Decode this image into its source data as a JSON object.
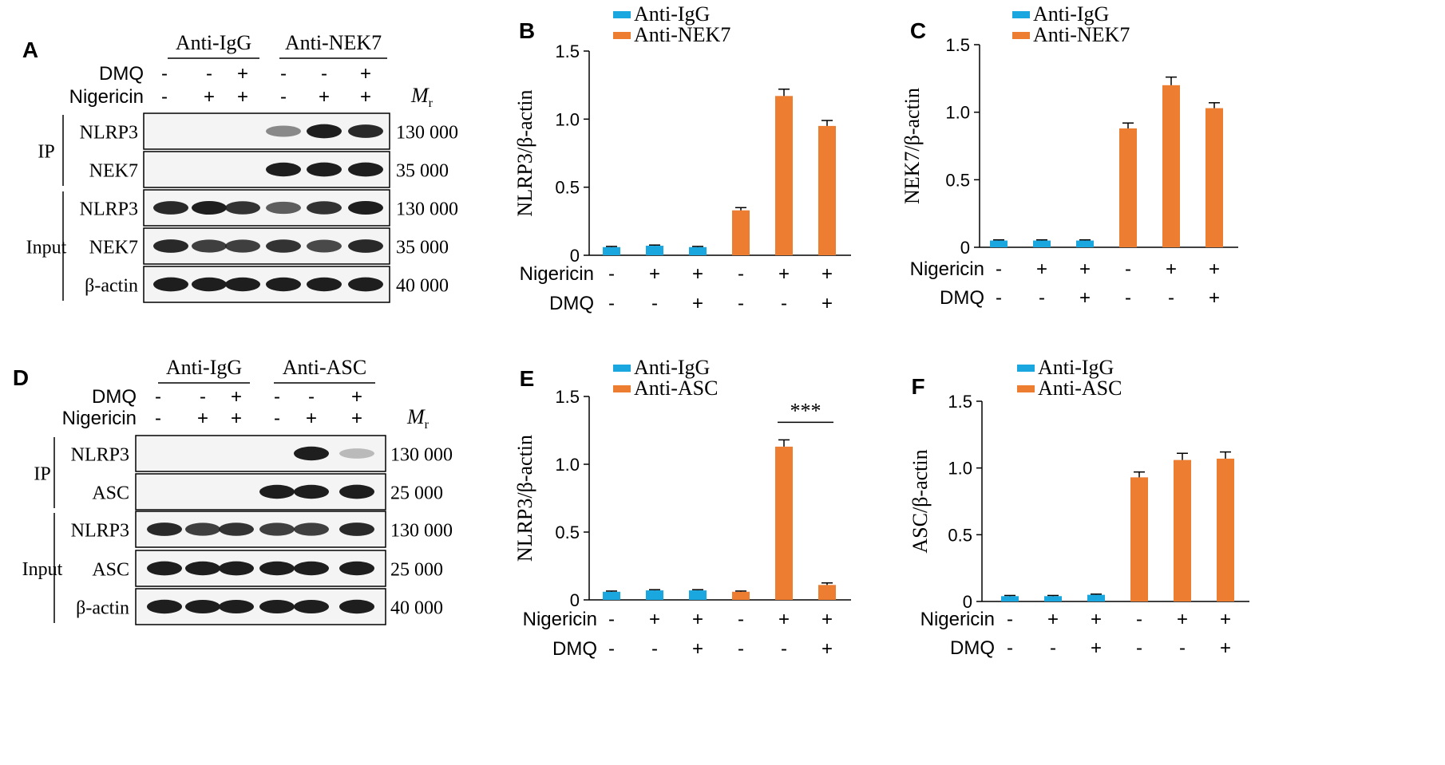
{
  "colors": {
    "igg": "#1aa7e0",
    "target": "#ed7d31",
    "blot_bg": "#f4f4f4",
    "band": "#1e1e1e"
  },
  "blots": [
    {
      "letter": "A",
      "groups": [
        "Anti-IgG",
        "Anti-NEK7"
      ],
      "conditions": [
        {
          "label": "DMQ",
          "values": [
            "-",
            "-",
            "+",
            "-",
            "-",
            "+"
          ]
        },
        {
          "label": "Nigericin",
          "values": [
            "-",
            "+",
            "+",
            "-",
            "+",
            "+"
          ]
        }
      ],
      "mr_label": "M",
      "mr_sub": "r",
      "sections": [
        {
          "label": "IP",
          "rows": [
            0,
            1
          ]
        },
        {
          "label": "Input",
          "rows": [
            2,
            3,
            4
          ]
        }
      ],
      "rows": [
        {
          "protein": "NLRP3",
          "mw": "130 000",
          "intensity": [
            0,
            0,
            0,
            0.35,
            0.95,
            0.8
          ]
        },
        {
          "protein": "NEK7",
          "mw": "35 000",
          "intensity": [
            0,
            0,
            0,
            0.9,
            0.95,
            0.95
          ]
        },
        {
          "protein": "NLRP3",
          "mw": "130 000",
          "intensity": [
            0.8,
            0.85,
            0.75,
            0.55,
            0.75,
            0.85
          ]
        },
        {
          "protein": "NEK7",
          "mw": "35 000",
          "intensity": [
            0.8,
            0.7,
            0.7,
            0.75,
            0.65,
            0.8
          ]
        },
        {
          "protein": "β-actin",
          "mw": "40 000",
          "intensity": [
            0.95,
            0.9,
            0.9,
            0.9,
            0.9,
            0.95
          ]
        }
      ]
    },
    {
      "letter": "D",
      "groups": [
        "Anti-IgG",
        "Anti-ASC"
      ],
      "conditions": [
        {
          "label": "DMQ",
          "values": [
            "-",
            "-",
            "+",
            "-",
            "-",
            "+"
          ]
        },
        {
          "label": "Nigericin",
          "values": [
            "-",
            "+",
            "+",
            "-",
            "+",
            "+"
          ]
        }
      ],
      "mr_label": "M",
      "mr_sub": "r",
      "sections": [
        {
          "label": "IP",
          "rows": [
            0,
            1
          ]
        },
        {
          "label": "Input",
          "rows": [
            2,
            3,
            4
          ]
        }
      ],
      "rows": [
        {
          "protein": "NLRP3",
          "mw": "130 000",
          "intensity": [
            0,
            0,
            0,
            0,
            0.9,
            0.12
          ]
        },
        {
          "protein": "ASC",
          "mw": "25 000",
          "intensity": [
            0,
            0,
            0,
            0.9,
            0.9,
            0.95
          ]
        },
        {
          "protein": "NLRP3",
          "mw": "130 000",
          "intensity": [
            0.8,
            0.7,
            0.75,
            0.7,
            0.7,
            0.8
          ]
        },
        {
          "protein": "ASC",
          "mw": "25 000",
          "intensity": [
            0.95,
            0.9,
            0.95,
            0.9,
            0.9,
            0.9
          ]
        },
        {
          "protein": "β-actin",
          "mw": "40 000",
          "intensity": [
            0.9,
            0.85,
            0.85,
            0.85,
            0.85,
            0.9
          ]
        }
      ]
    }
  ],
  "chart_data": [
    {
      "letter": "B",
      "type": "bar",
      "ylabel": "NLRP3/β-actin",
      "ylim": [
        0,
        1.5
      ],
      "yticks": [
        "0",
        "0.5",
        "1.0",
        "1.5"
      ],
      "legend": [
        "Anti-IgG",
        "Anti-NEK7"
      ],
      "legend_position": "top-left",
      "rows": [
        {
          "label": "Nigericin",
          "values": [
            "-",
            "+",
            "+",
            "-",
            "+",
            "+"
          ]
        },
        {
          "label": "DMQ",
          "values": [
            "-",
            "-",
            "+",
            "-",
            "-",
            "+"
          ]
        }
      ],
      "bars": [
        {
          "group": 0,
          "value": 0.06,
          "error": 0.005
        },
        {
          "group": 0,
          "value": 0.07,
          "error": 0.005
        },
        {
          "group": 0,
          "value": 0.06,
          "error": 0.005
        },
        {
          "group": 1,
          "value": 0.33,
          "error": 0.02
        },
        {
          "group": 1,
          "value": 1.17,
          "error": 0.05
        },
        {
          "group": 1,
          "value": 0.95,
          "error": 0.04
        }
      ],
      "significance": null
    },
    {
      "letter": "C",
      "type": "bar",
      "ylabel": "NEK7/β-actin",
      "ylim": [
        0,
        1.5
      ],
      "yticks": [
        "0",
        "0.5",
        "1.0",
        "1.5"
      ],
      "legend": [
        "Anti-IgG",
        "Anti-NEK7"
      ],
      "legend_position": "top-left",
      "rows": [
        {
          "label": "Nigericin",
          "values": [
            "-",
            "+",
            "+",
            "-",
            "+",
            "+"
          ]
        },
        {
          "label": "DMQ",
          "values": [
            "-",
            "-",
            "+",
            "-",
            "-",
            "+"
          ]
        }
      ],
      "bars": [
        {
          "group": 0,
          "value": 0.05,
          "error": 0.005
        },
        {
          "group": 0,
          "value": 0.05,
          "error": 0.005
        },
        {
          "group": 0,
          "value": 0.05,
          "error": 0.005
        },
        {
          "group": 1,
          "value": 0.88,
          "error": 0.04
        },
        {
          "group": 1,
          "value": 1.2,
          "error": 0.06
        },
        {
          "group": 1,
          "value": 1.03,
          "error": 0.04
        }
      ],
      "significance": null
    },
    {
      "letter": "E",
      "type": "bar",
      "ylabel": "NLRP3/β-actin",
      "ylim": [
        0,
        1.5
      ],
      "yticks": [
        "0",
        "0.5",
        "1.0",
        "1.5"
      ],
      "legend": [
        "Anti-IgG",
        "Anti-ASC"
      ],
      "legend_position": "top-left",
      "rows": [
        {
          "label": "Nigericin",
          "values": [
            "-",
            "+",
            "+",
            "-",
            "+",
            "+"
          ]
        },
        {
          "label": "DMQ",
          "values": [
            "-",
            "-",
            "+",
            "-",
            "-",
            "+"
          ]
        }
      ],
      "bars": [
        {
          "group": 0,
          "value": 0.06,
          "error": 0.005
        },
        {
          "group": 0,
          "value": 0.07,
          "error": 0.005
        },
        {
          "group": 0,
          "value": 0.07,
          "error": 0.005
        },
        {
          "group": 1,
          "value": 0.06,
          "error": 0.005
        },
        {
          "group": 1,
          "value": 1.13,
          "error": 0.05
        },
        {
          "group": 1,
          "value": 0.11,
          "error": 0.015
        }
      ],
      "significance": {
        "from": 4,
        "to": 5,
        "label": "***"
      }
    },
    {
      "letter": "F",
      "type": "bar",
      "ylabel": "ASC/β-actin",
      "ylim": [
        0,
        1.5
      ],
      "yticks": [
        "0",
        "0.5",
        "1.0",
        "1.5"
      ],
      "legend": [
        "Anti-IgG",
        "Anti-ASC"
      ],
      "legend_position": "top-left",
      "rows": [
        {
          "label": "Nigericin",
          "values": [
            "-",
            "+",
            "+",
            "-",
            "+",
            "+"
          ]
        },
        {
          "label": "DMQ",
          "values": [
            "-",
            "-",
            "+",
            "-",
            "-",
            "+"
          ]
        }
      ],
      "bars": [
        {
          "group": 0,
          "value": 0.04,
          "error": 0.005
        },
        {
          "group": 0,
          "value": 0.04,
          "error": 0.005
        },
        {
          "group": 0,
          "value": 0.05,
          "error": 0.005
        },
        {
          "group": 1,
          "value": 0.93,
          "error": 0.04
        },
        {
          "group": 1,
          "value": 1.06,
          "error": 0.05
        },
        {
          "group": 1,
          "value": 1.07,
          "error": 0.05
        }
      ],
      "significance": null
    }
  ]
}
